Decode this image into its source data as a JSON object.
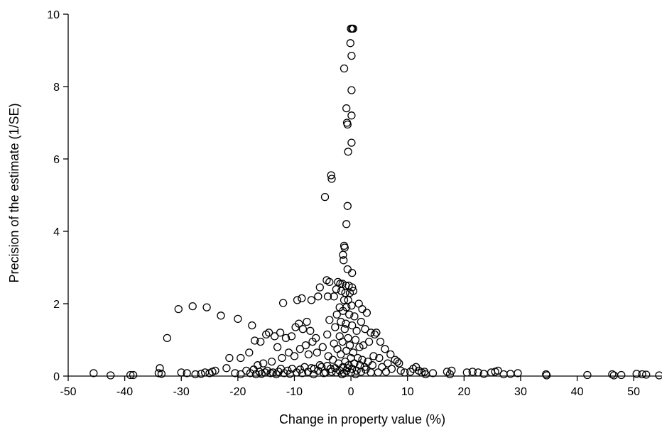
{
  "chart_data": {
    "type": "scatter",
    "title": "",
    "xlabel": "Change in property value (%)",
    "ylabel": "Precision of the estimate (1/SE)",
    "xlim": [
      -50,
      55
    ],
    "ylim": [
      0,
      10
    ],
    "xticks": [
      -50,
      -40,
      -30,
      -20,
      -10,
      0,
      10,
      20,
      30,
      40,
      50
    ],
    "yticks": [
      0,
      2,
      4,
      6,
      8,
      10
    ],
    "xtick_labels": [
      "-50",
      "-40",
      "-30",
      "-20",
      "-10",
      "0",
      "10",
      "20",
      "30",
      "40",
      "50"
    ],
    "ytick_labels": [
      "0",
      "2",
      "4",
      "6",
      "8",
      "10"
    ],
    "grid": false,
    "legend": "none",
    "marker": "hollow-circle",
    "marker_color": "#000000",
    "points": [
      [
        0,
        9.6
      ],
      [
        0.2,
        9.6
      ],
      [
        0.4,
        9.6
      ],
      [
        -0.1,
        9.2
      ],
      [
        0.1,
        8.85
      ],
      [
        -1.2,
        8.5
      ],
      [
        0.1,
        7.9
      ],
      [
        -0.8,
        7.4
      ],
      [
        0.1,
        7.2
      ],
      [
        -0.7,
        7.0
      ],
      [
        -0.6,
        6.95
      ],
      [
        0.1,
        6.45
      ],
      [
        -0.5,
        6.2
      ],
      [
        -3.5,
        5.55
      ],
      [
        -3.4,
        5.45
      ],
      [
        -4.6,
        4.95
      ],
      [
        -0.6,
        4.7
      ],
      [
        -0.8,
        4.2
      ],
      [
        -1.2,
        3.6
      ],
      [
        -1.1,
        3.55
      ],
      [
        -1.4,
        3.35
      ],
      [
        -1.3,
        3.2
      ],
      [
        -0.6,
        2.95
      ],
      [
        0.2,
        2.85
      ],
      [
        -4.3,
        2.65
      ],
      [
        -3.8,
        2.6
      ],
      [
        -2.3,
        2.6
      ],
      [
        -1.9,
        2.55
      ],
      [
        -1.5,
        2.55
      ],
      [
        -0.9,
        2.5
      ],
      [
        -0.4,
        2.5
      ],
      [
        0.2,
        2.45
      ],
      [
        -5.5,
        2.45
      ],
      [
        -2.6,
        2.4
      ],
      [
        -1.7,
        2.35
      ],
      [
        -1.0,
        2.3
      ],
      [
        -0.2,
        2.3
      ],
      [
        0.4,
        2.35
      ],
      [
        -4.1,
        2.2
      ],
      [
        -3.0,
        2.2
      ],
      [
        -1.2,
        2.1
      ],
      [
        -0.5,
        2.1
      ],
      [
        -8.7,
        2.15
      ],
      [
        -7.0,
        2.1
      ],
      [
        -5.8,
        2.2
      ],
      [
        -2.0,
        1.9
      ],
      [
        -0.8,
        1.9
      ],
      [
        0.1,
        1.95
      ],
      [
        -1.4,
        1.8
      ],
      [
        -2.5,
        1.7
      ],
      [
        -0.3,
        1.7
      ],
      [
        0.6,
        1.65
      ],
      [
        -3.8,
        1.55
      ],
      [
        -1.8,
        1.5
      ],
      [
        -0.9,
        1.45
      ],
      [
        0.2,
        1.4
      ],
      [
        -2.8,
        1.35
      ],
      [
        -1.1,
        1.3
      ],
      [
        1.0,
        1.25
      ],
      [
        -4.2,
        1.15
      ],
      [
        -2.0,
        1.1
      ],
      [
        -0.5,
        1.05
      ],
      [
        0.8,
        1.0
      ],
      [
        -1.5,
        0.95
      ],
      [
        -3.0,
        0.9
      ],
      [
        -0.2,
        0.85
      ],
      [
        1.5,
        0.8
      ],
      [
        -5.0,
        0.8
      ],
      [
        -2.4,
        0.75
      ],
      [
        -0.8,
        0.7
      ],
      [
        0.4,
        0.65
      ],
      [
        -6.0,
        0.65
      ],
      [
        -1.8,
        0.6
      ],
      [
        -4.0,
        0.55
      ],
      [
        0.0,
        0.5
      ],
      [
        1.2,
        0.5
      ],
      [
        2.0,
        0.45
      ],
      [
        -3.2,
        0.45
      ],
      [
        -1.0,
        0.4
      ],
      [
        0.6,
        0.35
      ],
      [
        3.0,
        0.4
      ],
      [
        -2.2,
        0.35
      ],
      [
        -0.4,
        0.3
      ],
      [
        1.6,
        0.3
      ],
      [
        -5.5,
        0.3
      ],
      [
        -1.4,
        0.25
      ],
      [
        0.2,
        0.2
      ],
      [
        2.4,
        0.25
      ],
      [
        -3.6,
        0.2
      ],
      [
        -0.8,
        0.15
      ],
      [
        1.0,
        0.15
      ],
      [
        -6.5,
        0.2
      ],
      [
        -2.6,
        0.1
      ],
      [
        0.0,
        0.1
      ],
      [
        3.5,
        0.1
      ],
      [
        -4.5,
        0.1
      ],
      [
        -1.6,
        0.05
      ],
      [
        0.8,
        0.05
      ],
      [
        -30.5,
        1.85
      ],
      [
        -28.0,
        1.93
      ],
      [
        -25.5,
        1.9
      ],
      [
        -23.0,
        1.67
      ],
      [
        -20.0,
        1.58
      ],
      [
        -17.5,
        1.4
      ],
      [
        -12.0,
        2.02
      ],
      [
        -9.5,
        2.1
      ],
      [
        -32.5,
        1.05
      ],
      [
        -21.5,
        0.5
      ],
      [
        -19.5,
        0.5
      ],
      [
        -18.0,
        0.65
      ],
      [
        -17.0,
        0.98
      ],
      [
        -16.0,
        0.95
      ],
      [
        -15.0,
        1.15
      ],
      [
        -14.5,
        1.2
      ],
      [
        -13.5,
        1.1
      ],
      [
        -12.5,
        1.2
      ],
      [
        -11.5,
        1.05
      ],
      [
        -10.5,
        1.1
      ],
      [
        -9.8,
        1.35
      ],
      [
        -9.2,
        1.45
      ],
      [
        -8.5,
        1.3
      ],
      [
        -7.8,
        1.5
      ],
      [
        -7.2,
        1.25
      ],
      [
        -13.0,
        0.8
      ],
      [
        -11.0,
        0.65
      ],
      [
        -10.0,
        0.55
      ],
      [
        -9.0,
        0.75
      ],
      [
        -8.0,
        0.85
      ],
      [
        -7.5,
        0.6
      ],
      [
        -6.8,
        0.95
      ],
      [
        -6.2,
        1.05
      ],
      [
        -14.0,
        0.4
      ],
      [
        -12.2,
        0.5
      ],
      [
        -16.5,
        0.3
      ],
      [
        -15.5,
        0.35
      ],
      [
        -45.5,
        0.08
      ],
      [
        -42.5,
        0.02
      ],
      [
        -39.0,
        0.03
      ],
      [
        -38.5,
        0.03
      ],
      [
        -33.8,
        0.22
      ],
      [
        -34.0,
        0.08
      ],
      [
        -33.5,
        0.06
      ],
      [
        -30.0,
        0.1
      ],
      [
        -29.0,
        0.08
      ],
      [
        -27.5,
        0.05
      ],
      [
        -26.5,
        0.06
      ],
      [
        -25.8,
        0.1
      ],
      [
        -25.0,
        0.08
      ],
      [
        -24.5,
        0.12
      ],
      [
        -24.0,
        0.15
      ],
      [
        -22.0,
        0.22
      ],
      [
        -20.5,
        0.08
      ],
      [
        -19.5,
        0.05
      ],
      [
        -18.5,
        0.15
      ],
      [
        -17.8,
        0.08
      ],
      [
        -17.2,
        0.18
      ],
      [
        -16.8,
        0.05
      ],
      [
        -16.2,
        0.12
      ],
      [
        -15.8,
        0.06
      ],
      [
        -15.2,
        0.1
      ],
      [
        -14.8,
        0.15
      ],
      [
        -14.2,
        0.08
      ],
      [
        -13.8,
        0.1
      ],
      [
        -13.2,
        0.05
      ],
      [
        -12.8,
        0.12
      ],
      [
        -12.4,
        0.2
      ],
      [
        -11.8,
        0.08
      ],
      [
        -11.2,
        0.15
      ],
      [
        -10.8,
        0.06
      ],
      [
        -10.4,
        0.2
      ],
      [
        -9.6,
        0.1
      ],
      [
        -9.0,
        0.18
      ],
      [
        -8.6,
        0.08
      ],
      [
        -8.2,
        0.25
      ],
      [
        -7.6,
        0.12
      ],
      [
        -7.0,
        0.22
      ],
      [
        -6.6,
        0.05
      ],
      [
        -5.8,
        0.15
      ],
      [
        -5.2,
        0.25
      ],
      [
        -4.8,
        0.08
      ],
      [
        -4.2,
        0.28
      ],
      [
        -3.4,
        0.12
      ],
      [
        -2.8,
        0.22
      ],
      [
        -2.0,
        0.15
      ],
      [
        -1.2,
        0.08
      ],
      [
        -0.6,
        0.22
      ],
      [
        1.4,
        2.0
      ],
      [
        2.0,
        1.85
      ],
      [
        2.8,
        1.75
      ],
      [
        1.8,
        1.5
      ],
      [
        2.5,
        1.3
      ],
      [
        3.5,
        1.2
      ],
      [
        4.2,
        1.15
      ],
      [
        4.5,
        1.2
      ],
      [
        3.2,
        0.95
      ],
      [
        2.2,
        0.85
      ],
      [
        5.2,
        0.95
      ],
      [
        6.0,
        0.75
      ],
      [
        7.0,
        0.6
      ],
      [
        7.8,
        0.45
      ],
      [
        8.2,
        0.4
      ],
      [
        8.5,
        0.35
      ],
      [
        4.0,
        0.55
      ],
      [
        5.0,
        0.5
      ],
      [
        6.5,
        0.35
      ],
      [
        3.8,
        0.3
      ],
      [
        5.5,
        0.25
      ],
      [
        7.2,
        0.2
      ],
      [
        8.8,
        0.15
      ],
      [
        4.8,
        0.1
      ],
      [
        6.2,
        0.12
      ],
      [
        2.6,
        0.18
      ],
      [
        1.8,
        0.12
      ],
      [
        9.5,
        0.1
      ],
      [
        10.5,
        0.12
      ],
      [
        11.0,
        0.2
      ],
      [
        11.5,
        0.25
      ],
      [
        12.0,
        0.15
      ],
      [
        12.5,
        0.1
      ],
      [
        13.2,
        0.05
      ],
      [
        13.0,
        0.12
      ],
      [
        14.5,
        0.08
      ],
      [
        17.0,
        0.12
      ],
      [
        17.5,
        0.05
      ],
      [
        17.8,
        0.15
      ],
      [
        20.5,
        0.1
      ],
      [
        21.5,
        0.12
      ],
      [
        22.5,
        0.1
      ],
      [
        23.5,
        0.06
      ],
      [
        24.8,
        0.1
      ],
      [
        25.5,
        0.12
      ],
      [
        26.0,
        0.15
      ],
      [
        27.0,
        0.05
      ],
      [
        28.2,
        0.06
      ],
      [
        29.5,
        0.08
      ],
      [
        34.5,
        0.05
      ],
      [
        34.6,
        0.02
      ],
      [
        41.8,
        0.03
      ],
      [
        46.2,
        0.05
      ],
      [
        46.5,
        0.02
      ],
      [
        47.8,
        0.03
      ],
      [
        50.5,
        0.06
      ],
      [
        51.5,
        0.05
      ],
      [
        52.2,
        0.04
      ],
      [
        54.5,
        0.02
      ]
    ]
  }
}
